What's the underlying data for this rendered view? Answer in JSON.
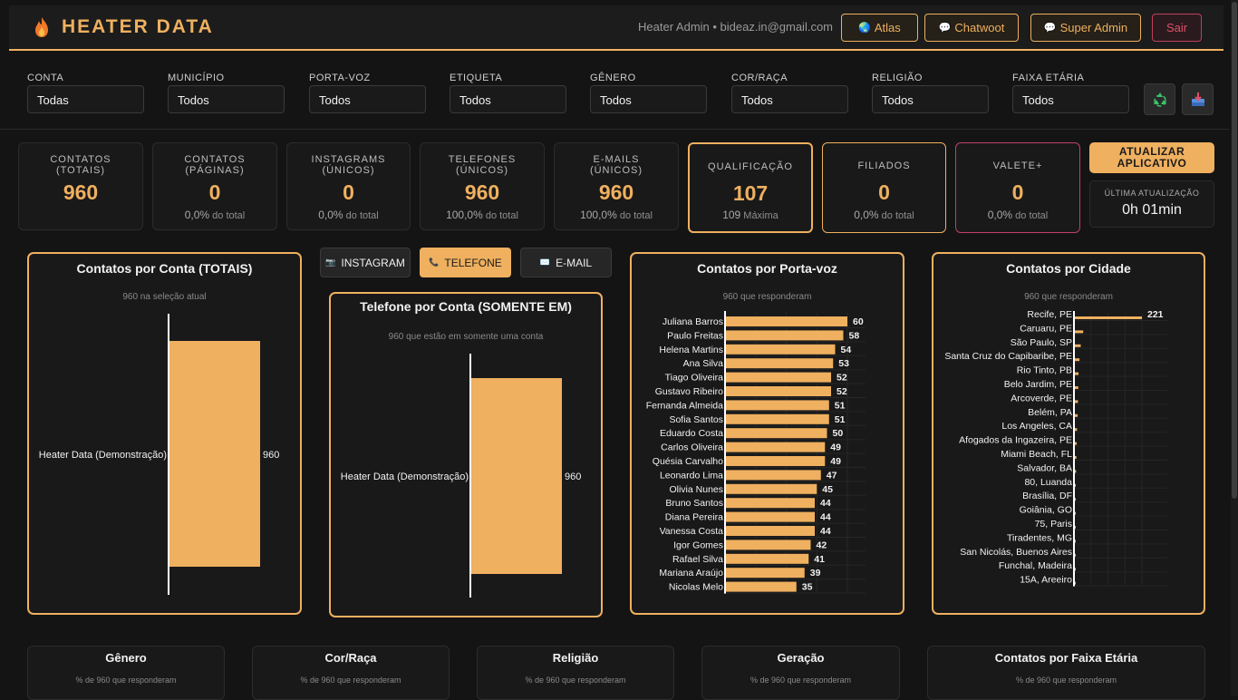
{
  "header": {
    "title": "HEATER DATA",
    "logo_icon": "flame-icon",
    "user": "Heater Admin • bideaz.in@gmail.com",
    "buttons": [
      {
        "label": "Atlas",
        "icon": "globe-icon"
      },
      {
        "label": "Chatwoot",
        "icon": "chat-icon"
      },
      {
        "label": "Super Admin",
        "icon": "chat-icon"
      },
      {
        "label": "Sair"
      }
    ]
  },
  "filters": [
    {
      "label": "CONTA",
      "value": "Todas"
    },
    {
      "label": "MUNICÍPIO",
      "value": "Todos"
    },
    {
      "label": "PORTA-VOZ",
      "value": "Todos"
    },
    {
      "label": "ETIQUETA",
      "value": "Todos"
    },
    {
      "label": "GÊNERO",
      "value": "Todos"
    },
    {
      "label": "COR/RAÇA",
      "value": "Todos"
    },
    {
      "label": "RELIGIÃO",
      "value": "Todos"
    },
    {
      "label": "FAIXA ETÁRIA",
      "value": "Todos"
    }
  ],
  "icon_buttons": {
    "reset": "recycle-icon",
    "export": "inbox-download-icon"
  },
  "stats": [
    {
      "label": "CONTATOS\n(TOTAIS)",
      "value": "960",
      "sub_value": "",
      "sub_text": ""
    },
    {
      "label": "CONTATOS\n(PÁGINAS)",
      "value": "0",
      "sub_value": "0,0%",
      "sub_text": "do total"
    },
    {
      "label": "INSTAGRAMS\n(ÚNICOS)",
      "value": "0",
      "sub_value": "0,0%",
      "sub_text": "do total"
    },
    {
      "label": "TELEFONES\n(ÚNICOS)",
      "value": "960",
      "sub_value": "100,0%",
      "sub_text": "do total"
    },
    {
      "label": "E-MAILS\n(ÚNICOS)",
      "value": "960",
      "sub_value": "100,0%",
      "sub_text": "do total"
    },
    {
      "label": "QUALIFICAÇÃO",
      "value": "107",
      "sub_value": "109",
      "sub_text": "Máxima"
    },
    {
      "label": "FILIADOS",
      "value": "0",
      "sub_value": "0,0%",
      "sub_text": "do total"
    },
    {
      "label": "VALETE+",
      "value": "0",
      "sub_value": "0,0%",
      "sub_text": "do total"
    }
  ],
  "update": {
    "button": "ATUALIZAR\nAPLICATIVO",
    "last_label": "ÚLTIMA ATUALIZAÇÃO",
    "last_value": "0h 01min"
  },
  "tabs": [
    {
      "label": "INSTAGRAM",
      "icon": "camera-icon",
      "active": false
    },
    {
      "label": "TELEFONE",
      "icon": "phone-icon",
      "active": true
    },
    {
      "label": "E-MAIL",
      "icon": "mail-icon",
      "active": false
    }
  ],
  "colors": {
    "accent": "#efb05f",
    "background": "#141414",
    "panel": "#191919",
    "danger": "#c0405a"
  },
  "chart_data": [
    {
      "type": "bar",
      "orientation": "horizontal",
      "title": "Contatos por Conta (TOTAIS)",
      "subtitle": "960 na seleção atual",
      "categories": [
        "Heater Data (Demonstração)"
      ],
      "values": [
        960
      ],
      "data_labels": [
        "960"
      ]
    },
    {
      "type": "bar",
      "orientation": "horizontal",
      "title": "Telefone por Conta (SOMENTE EM)",
      "subtitle": "960 que estão em somente uma conta",
      "categories": [
        "Heater Data (Demonstração)"
      ],
      "values": [
        960
      ],
      "data_labels": [
        "960"
      ]
    },
    {
      "type": "bar",
      "orientation": "horizontal",
      "title": "Contatos por Porta-voz",
      "subtitle": "960 que responderam",
      "categories": [
        "Juliana Barros",
        "Paulo Freitas",
        "Helena Martins",
        "Ana Silva",
        "Tiago Oliveira",
        "Gustavo Ribeiro",
        "Fernanda Almeida",
        "Sofia Santos",
        "Eduardo Costa",
        "Carlos Oliveira",
        "Quésia Carvalho",
        "Leonardo Lima",
        "Olivia Nunes",
        "Bruno Santos",
        "Diana Pereira",
        "Vanessa Costa",
        "Igor Gomes",
        "Rafael Silva",
        "Mariana Araújo",
        "Nicolas Melo"
      ],
      "values": [
        60,
        58,
        54,
        53,
        52,
        52,
        51,
        51,
        50,
        49,
        49,
        47,
        45,
        44,
        44,
        44,
        42,
        41,
        39,
        35
      ],
      "data_labels": [
        "60",
        "58",
        "54",
        "53",
        "52",
        "52",
        "51",
        "51",
        "50",
        "49",
        "49",
        "47",
        "45",
        "44",
        "44",
        "44",
        "42",
        "41",
        "39",
        "35"
      ]
    },
    {
      "type": "bar",
      "orientation": "horizontal",
      "title": "Contatos por Cidade",
      "subtitle": "960 que responderam",
      "categories": [
        "Recife, PE",
        "Caruaru, PE",
        "São Paulo, SP",
        "Santa Cruz do Capibaribe, PE",
        "Rio Tinto, PB",
        "Belo Jardim, PE",
        "Arcoverde, PE",
        "Belém, PA",
        "Los Angeles, CA",
        "Afogados da Ingazeira, PE",
        "Miami Beach, FL",
        "Salvador, BA",
        "80, Luanda",
        "Brasília, DF",
        "Goiânia, GO",
        "75, Paris",
        "Tiradentes, MG",
        "San Nicolás, Buenos Aires",
        "Funchal, Madeira",
        "15A, Areeiro"
      ],
      "values": [
        221,
        30,
        22,
        18,
        15,
        14,
        13,
        12,
        10,
        9,
        8,
        7,
        6,
        6,
        6,
        5,
        5,
        5,
        5,
        4
      ],
      "data_labels": [
        "221"
      ]
    }
  ],
  "bottom_cards": [
    {
      "title": "Gênero",
      "sub": "% de 960 que responderam"
    },
    {
      "title": "Cor/Raça",
      "sub": "% de 960 que responderam"
    },
    {
      "title": "Religião",
      "sub": "% de 960 que responderam"
    },
    {
      "title": "Geração",
      "sub": "% de 960 que responderam"
    },
    {
      "title": "Contatos por Faixa Etária",
      "sub": "% de 960 que responderam"
    }
  ]
}
